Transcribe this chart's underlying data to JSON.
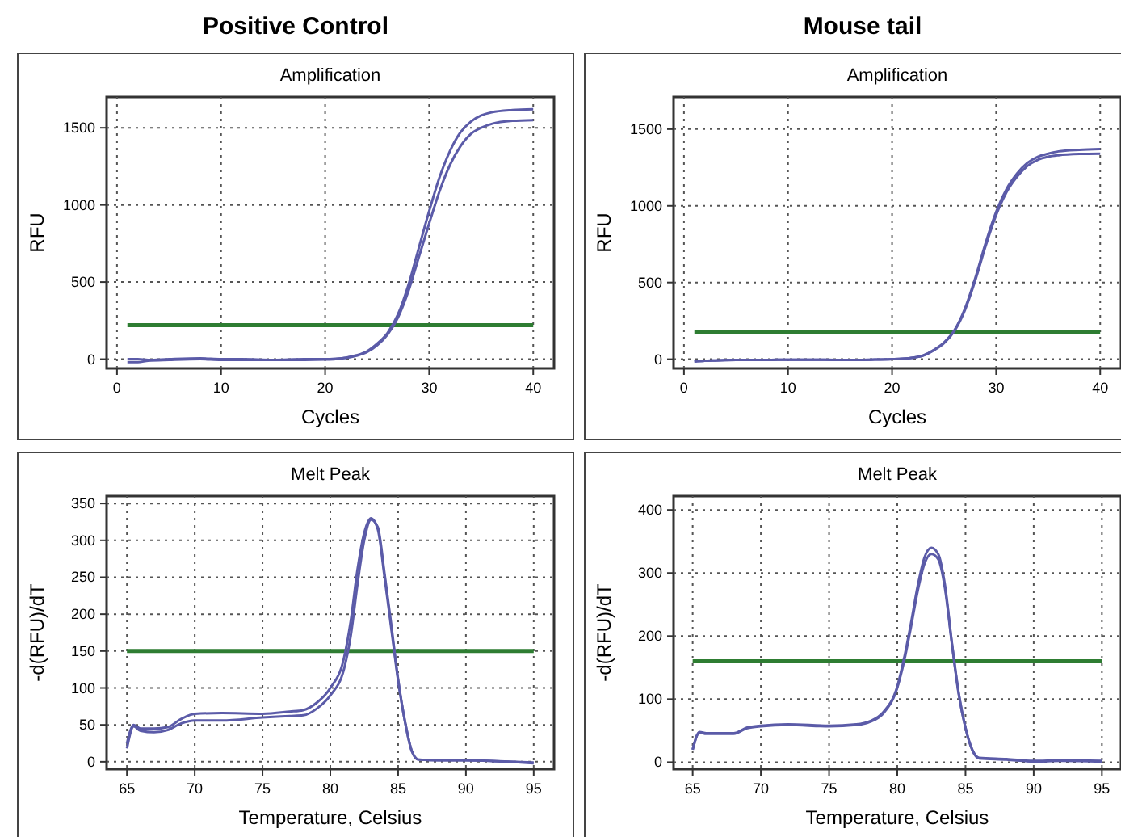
{
  "chart_data": [
    {
      "type": "line",
      "subtitle": "Positive Control",
      "title": "Amplification",
      "xlabel": "Cycles",
      "ylabel": "RFU",
      "xlim": [
        -1,
        42
      ],
      "ylim": [
        -60,
        1700
      ],
      "xticks": [
        0,
        10,
        20,
        30,
        40
      ],
      "yticks": [
        0,
        500,
        1000,
        1500
      ],
      "grid": true,
      "line_style": "solid",
      "marker": "none",
      "x": [
        1,
        2,
        3,
        5,
        8,
        10,
        12,
        15,
        18,
        20,
        21,
        22,
        23,
        24,
        25,
        26,
        27,
        28,
        29,
        30,
        31,
        32,
        33,
        34,
        35,
        36,
        38,
        40
      ],
      "series": [
        {
          "color": "#5b5ba8",
          "values": [
            0,
            0,
            -5,
            0,
            5,
            0,
            0,
            -5,
            0,
            0,
            3,
            10,
            25,
            50,
            100,
            170,
            290,
            480,
            720,
            960,
            1180,
            1350,
            1470,
            1540,
            1580,
            1600,
            1615,
            1620
          ]
        },
        {
          "color": "#5b5ba8",
          "values": [
            -20,
            -20,
            -10,
            -5,
            0,
            -5,
            -5,
            -5,
            -5,
            -3,
            0,
            8,
            22,
            45,
            90,
            160,
            270,
            440,
            660,
            880,
            1090,
            1260,
            1380,
            1460,
            1500,
            1525,
            1545,
            1550
          ]
        }
      ],
      "ref_lines": [
        {
          "axis": "y",
          "value": 220,
          "color": "#2e7d32"
        }
      ]
    },
    {
      "type": "line",
      "subtitle": "Mouse tail",
      "title": "Amplification",
      "xlabel": "Cycles",
      "ylabel": "RFU",
      "xlim": [
        -1,
        42
      ],
      "ylim": [
        -60,
        1710
      ],
      "xticks": [
        0,
        10,
        20,
        30,
        40
      ],
      "yticks": [
        0,
        500,
        1000,
        1500
      ],
      "grid": true,
      "line_style": "solid",
      "marker": "none",
      "x": [
        1,
        2,
        3,
        5,
        8,
        10,
        12,
        15,
        18,
        20,
        21,
        22,
        23,
        24,
        25,
        26,
        27,
        28,
        29,
        30,
        31,
        32,
        33,
        34,
        35,
        36,
        38,
        40
      ],
      "series": [
        {
          "color": "#5b5ba8",
          "values": [
            -15,
            -10,
            -8,
            -5,
            -5,
            -3,
            -3,
            -5,
            -3,
            0,
            3,
            10,
            25,
            60,
            110,
            190,
            330,
            530,
            760,
            960,
            1110,
            1210,
            1280,
            1320,
            1340,
            1355,
            1365,
            1370
          ]
        },
        {
          "color": "#5b5ba8",
          "values": [
            -15,
            -10,
            -8,
            -5,
            -5,
            -3,
            -3,
            -5,
            -3,
            0,
            3,
            10,
            24,
            58,
            105,
            185,
            320,
            515,
            740,
            940,
            1090,
            1190,
            1260,
            1300,
            1320,
            1330,
            1338,
            1340
          ]
        }
      ],
      "ref_lines": [
        {
          "axis": "y",
          "value": 180,
          "color": "#2e7d32"
        }
      ]
    },
    {
      "type": "line",
      "title": "Melt Peak",
      "xlabel": "Temperature, Celsius",
      "ylabel": "-d(RFU)/dT",
      "xlim": [
        63.5,
        96.5
      ],
      "ylim": [
        -10,
        360
      ],
      "xticks": [
        65,
        70,
        75,
        80,
        85,
        90,
        95
      ],
      "yticks": [
        0,
        50,
        100,
        150,
        200,
        250,
        300,
        350
      ],
      "grid": true,
      "line_style": "solid",
      "marker": "none",
      "x": [
        65,
        65.5,
        66,
        67,
        68,
        69,
        70,
        72,
        75,
        77,
        78,
        79,
        80,
        81,
        81.5,
        82,
        82.5,
        83,
        83.5,
        84,
        84.5,
        85,
        85.5,
        86,
        86.5,
        88,
        90,
        92,
        95
      ],
      "series": [
        {
          "color": "#5b5ba8",
          "values": [
            25,
            50,
            45,
            45,
            47,
            58,
            65,
            66,
            65,
            68,
            70,
            80,
            100,
            140,
            190,
            260,
            310,
            330,
            315,
            250,
            180,
            110,
            55,
            15,
            3,
            2,
            2,
            1,
            -2
          ]
        },
        {
          "color": "#5b5ba8",
          "values": [
            18,
            48,
            42,
            40,
            43,
            52,
            56,
            56,
            60,
            62,
            63,
            72,
            90,
            125,
            170,
            240,
            300,
            328,
            318,
            255,
            185,
            112,
            55,
            15,
            3,
            2,
            2,
            1,
            -1
          ]
        }
      ],
      "ref_lines": [
        {
          "axis": "y",
          "value": 150,
          "color": "#2e7d32"
        }
      ]
    },
    {
      "type": "line",
      "title": "Melt Peak",
      "xlabel": "Temperature, Celsius",
      "ylabel": "-d(RFU)/dT",
      "xlim": [
        63.6,
        96.4
      ],
      "ylim": [
        -11,
        422
      ],
      "xticks": [
        65,
        70,
        75,
        80,
        85,
        90,
        95
      ],
      "yticks": [
        0,
        100,
        200,
        300,
        400
      ],
      "grid": true,
      "line_style": "solid",
      "marker": "none",
      "x": [
        65,
        65.5,
        66,
        67,
        68,
        69,
        70,
        72,
        75,
        77,
        78,
        79,
        80,
        80.5,
        81,
        81.5,
        82,
        82.5,
        83,
        83.5,
        84,
        84.5,
        85,
        85.5,
        86,
        88,
        90,
        92,
        95
      ],
      "series": [
        {
          "color": "#5b5ba8",
          "values": [
            20,
            48,
            46,
            46,
            46,
            55,
            58,
            60,
            58,
            60,
            65,
            80,
            120,
            165,
            220,
            280,
            325,
            340,
            330,
            280,
            190,
            110,
            55,
            20,
            7,
            5,
            2,
            3,
            2
          ]
        },
        {
          "color": "#5b5ba8",
          "values": [
            20,
            47,
            45,
            45,
            45,
            54,
            57,
            59,
            57,
            59,
            64,
            78,
            118,
            160,
            214,
            272,
            315,
            330,
            322,
            275,
            188,
            108,
            54,
            19,
            6,
            4,
            1,
            2,
            1
          ]
        }
      ],
      "ref_lines": [
        {
          "axis": "y",
          "value": 160,
          "color": "#2e7d32"
        }
      ]
    }
  ]
}
